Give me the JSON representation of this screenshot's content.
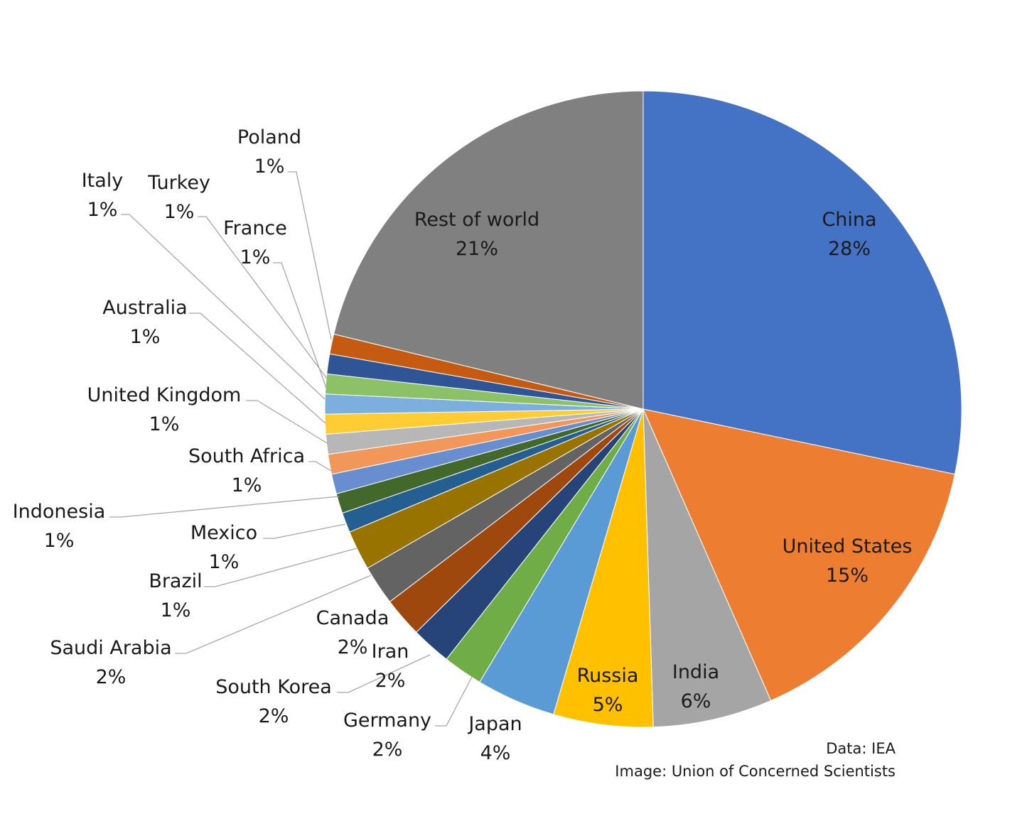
{
  "chart_data": {
    "type": "pie",
    "title": "",
    "start_angle_deg": 0,
    "direction": "clockwise",
    "slices": [
      {
        "label": "China",
        "value": 28,
        "value_label": "28%",
        "color": "#4472c4"
      },
      {
        "label": "United States",
        "value": 15,
        "value_label": "15%",
        "color": "#ed7d31"
      },
      {
        "label": "India",
        "value": 6,
        "value_label": "6%",
        "color": "#a5a5a5"
      },
      {
        "label": "Russia",
        "value": 5,
        "value_label": "5%",
        "color": "#ffc000"
      },
      {
        "label": "Japan",
        "value": 4,
        "value_label": "4%",
        "color": "#5b9bd5"
      },
      {
        "label": "Germany",
        "value": 2,
        "value_label": "2%",
        "color": "#70ad47"
      },
      {
        "label": "South Korea",
        "value": 2,
        "value_label": "2%",
        "color": "#264478"
      },
      {
        "label": "Iran",
        "value": 2,
        "value_label": "2%",
        "color": "#9e480e"
      },
      {
        "label": "Canada",
        "value": 2,
        "value_label": "2%",
        "color": "#636363"
      },
      {
        "label": "Saudi Arabia",
        "value": 2,
        "value_label": "2%",
        "color": "#997300"
      },
      {
        "label": "Brazil",
        "value": 1,
        "value_label": "1%",
        "color": "#255e91"
      },
      {
        "label": "Mexico",
        "value": 1,
        "value_label": "1%",
        "color": "#43682b"
      },
      {
        "label": "Indonesia",
        "value": 1,
        "value_label": "1%",
        "color": "#698ed0"
      },
      {
        "label": "South Africa",
        "value": 1,
        "value_label": "1%",
        "color": "#f1975a"
      },
      {
        "label": "United Kingdom",
        "value": 1,
        "value_label": "1%",
        "color": "#b7b7b7"
      },
      {
        "label": "Australia",
        "value": 1,
        "value_label": "1%",
        "color": "#ffcd33"
      },
      {
        "label": "France",
        "value": 1,
        "value_label": "1%",
        "color": "#7cafdd"
      },
      {
        "label": "Turkey",
        "value": 1,
        "value_label": "1%",
        "color": "#8cc168"
      },
      {
        "label": "Italy",
        "value": 1,
        "value_label": "1%",
        "color": "#2f5597"
      },
      {
        "label": "Poland",
        "value": 1,
        "value_label": "1%",
        "color": "#c55a11"
      },
      {
        "label": "Rest of world",
        "value": 21,
        "value_label": "21%",
        "color": "#808080"
      }
    ]
  },
  "credits": {
    "data_source": "Data: IEA",
    "image_source": "Image: Union of Concerned Scientists"
  }
}
